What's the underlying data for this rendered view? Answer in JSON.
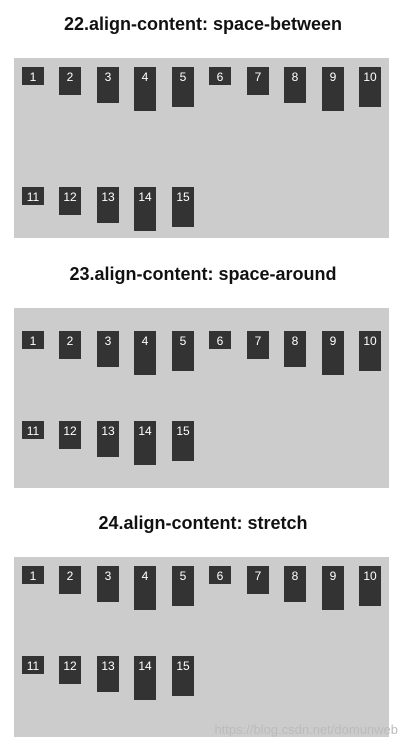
{
  "sections": [
    {
      "title": "22.align-content: space-between"
    },
    {
      "title": "23.align-content: space-around"
    },
    {
      "title": "24.align-content: stretch"
    }
  ],
  "items": [
    "1",
    "2",
    "3",
    "4",
    "5",
    "6",
    "7",
    "8",
    "9",
    "10",
    "11",
    "12",
    "13",
    "14",
    "15"
  ],
  "watermark": "https://blog.csdn.net/domunweb",
  "colors": {
    "panel": "#cccccc",
    "item": "#333333",
    "item_text": "#ffffff"
  }
}
